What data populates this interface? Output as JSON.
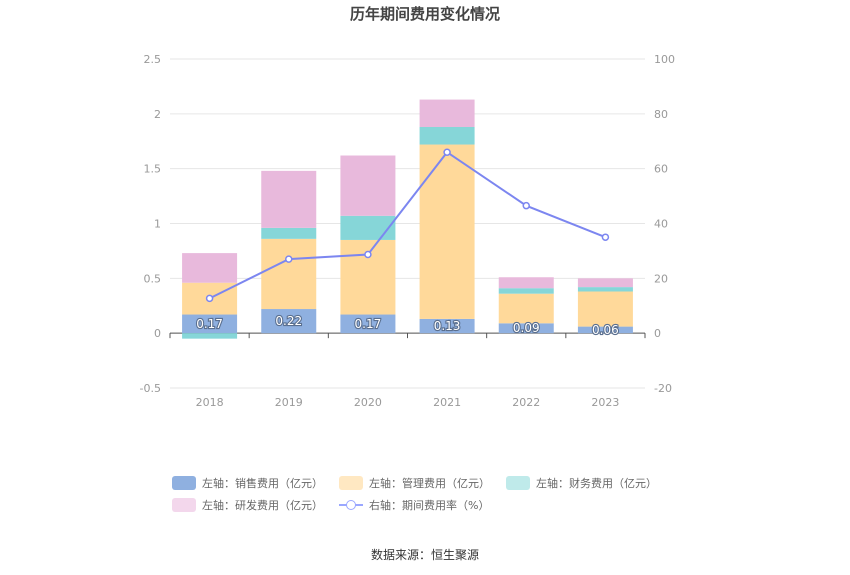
{
  "chart_data": {
    "type": "bar",
    "title": "历年期间费用变化情况",
    "categories": [
      "2018",
      "2019",
      "2020",
      "2021",
      "2022",
      "2023"
    ],
    "series": [
      {
        "name": "左轴：销售费用（亿元）",
        "axis": "left",
        "values": [
          0.17,
          0.22,
          0.17,
          0.13,
          0.09,
          0.06
        ],
        "color": "#8fb0e0",
        "labels": [
          "0.17",
          "0.22",
          "0.17",
          "0.13",
          "0.09",
          "0.06"
        ]
      },
      {
        "name": "左轴：管理费用（亿元）",
        "axis": "left",
        "values": [
          0.29,
          0.64,
          0.68,
          1.59,
          0.27,
          0.32
        ],
        "color": "#ffd99a"
      },
      {
        "name": "左轴：财务费用（亿元）",
        "axis": "left",
        "values": [
          -0.05,
          0.1,
          0.22,
          0.16,
          0.05,
          0.04
        ],
        "color": "#86d6d8"
      },
      {
        "name": "左轴：研发费用（亿元）",
        "axis": "left",
        "values": [
          0.27,
          0.52,
          0.55,
          0.25,
          0.1,
          0.08
        ],
        "color": "#e8b9dc"
      },
      {
        "name": "右轴：期间费用率（%）",
        "type": "line",
        "axis": "right",
        "values": [
          12.7,
          27.0,
          28.7,
          66.0,
          46.5,
          35.0
        ],
        "color": "#7c86f0"
      }
    ],
    "left_axis": {
      "ylim": [
        -0.5,
        2.5
      ],
      "ticks": [
        "-0.5",
        "0",
        "0.5",
        "1",
        "1.5",
        "2",
        "2.5"
      ]
    },
    "right_axis": {
      "ylim": [
        -20,
        100
      ],
      "ticks": [
        "-20",
        "0",
        "20",
        "40",
        "60",
        "80",
        "100"
      ]
    },
    "grid": true,
    "legend_position": "bottom"
  },
  "source": "数据来源：恒生聚源"
}
